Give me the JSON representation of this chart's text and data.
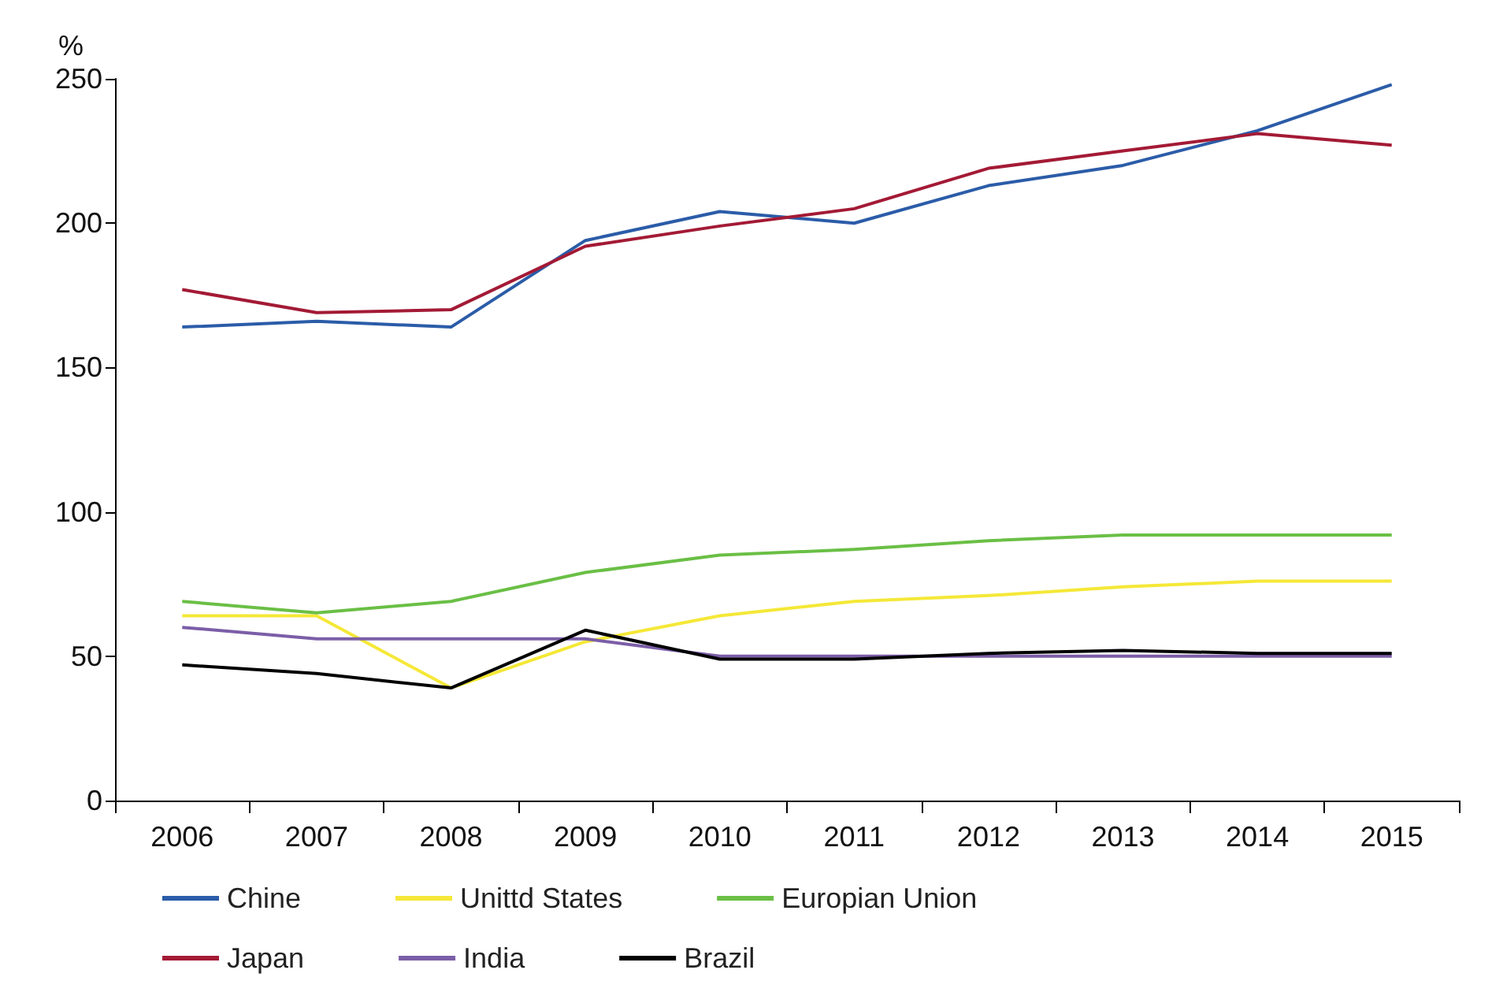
{
  "chart_data": {
    "type": "line",
    "ylabel": "%",
    "categories": [
      "2006",
      "2007",
      "2008",
      "2009",
      "2010",
      "2011",
      "2012",
      "2013",
      "2014",
      "2015"
    ],
    "series": [
      {
        "name": "Chine",
        "color": "#2b5ca8",
        "values": [
          164,
          166,
          164,
          194,
          204,
          200,
          213,
          220,
          232,
          248
        ]
      },
      {
        "name": "Unittd States",
        "color": "#f5e837",
        "values": [
          64,
          64,
          39,
          55,
          64,
          69,
          71,
          74,
          76,
          76
        ]
      },
      {
        "name": "Europian Union",
        "color": "#6abf45",
        "values": [
          69,
          65,
          69,
          79,
          85,
          87,
          90,
          92,
          92,
          92
        ]
      },
      {
        "name": "Japan",
        "color": "#a31a35",
        "values": [
          177,
          169,
          170,
          192,
          199,
          205,
          219,
          225,
          231,
          227
        ]
      },
      {
        "name": "India",
        "color": "#7b5ea7",
        "values": [
          60,
          56,
          56,
          56,
          50,
          50,
          50,
          50,
          50,
          50
        ]
      },
      {
        "name": "Brazil",
        "color": "#000000",
        "values": [
          47,
          44,
          39,
          59,
          49,
          49,
          51,
          52,
          51,
          51
        ]
      }
    ],
    "ylim": [
      0,
      250
    ],
    "yticks": [
      0,
      50,
      100,
      150,
      200,
      250
    ],
    "grid": false,
    "legend": "bottom",
    "marker": "none",
    "line_style": "solid"
  }
}
